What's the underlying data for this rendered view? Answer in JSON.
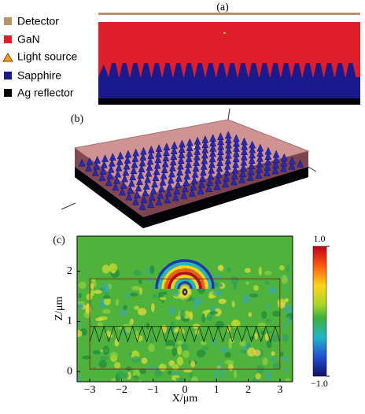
{
  "panel_a": {
    "label": "(a)",
    "legend": [
      "Detector",
      "GaN",
      "Light source",
      "Sapphire",
      "Ag reflector"
    ]
  },
  "panel_b": {
    "label": "(b)"
  },
  "chart_data": {
    "type": "heatmap",
    "label": "(c)",
    "x_label": "X/μm",
    "y_label": "Z/μm",
    "xlim": [
      -3.4,
      3.4
    ],
    "ylim": [
      -0.2,
      2.7
    ],
    "xticks": [
      {
        "value": -3,
        "label": "−3"
      },
      {
        "value": -2,
        "label": "−2"
      },
      {
        "value": -1,
        "label": "−1"
      },
      0,
      1,
      2,
      3
    ],
    "yticks": [
      0,
      1,
      2
    ],
    "colorbar": {
      "clim": [
        -1,
        1
      ],
      "ticks": [
        {
          "value": 1,
          "label": "1.0"
        },
        {
          "value": -1,
          "label": "−1.0"
        }
      ]
    }
  }
}
